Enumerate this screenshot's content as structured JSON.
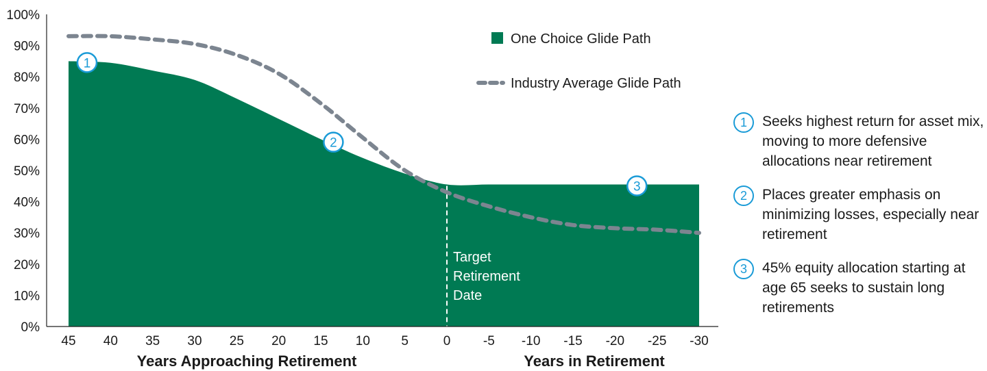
{
  "chart_data": {
    "type": "area",
    "y_ticks": [
      "100%",
      "90%",
      "80%",
      "70%",
      "60%",
      "50%",
      "40%",
      "30%",
      "20%",
      "10%",
      "0%"
    ],
    "ylim": [
      0,
      100
    ],
    "x_ticks": [
      "45",
      "40",
      "35",
      "30",
      "25",
      "20",
      "15",
      "10",
      "5",
      "0",
      "-5",
      "-10",
      "-15",
      "-20",
      "-25",
      "-30"
    ],
    "xlim": [
      45,
      -30
    ],
    "xlabel_left": "Years Approaching Retirement",
    "xlabel_right": "Years in Retirement",
    "grid": false,
    "legend_position": "top-right",
    "series": [
      {
        "name": "One Choice Glide Path",
        "style": "area",
        "color": "#007a53",
        "x": [
          45,
          40,
          35,
          30,
          25,
          20,
          15,
          10,
          5,
          0,
          -5,
          -10,
          -15,
          -20,
          -25,
          -30
        ],
        "values": [
          85,
          84.5,
          82,
          79,
          73,
          66.5,
          60,
          54,
          49,
          45.5,
          45.5,
          45.5,
          45.5,
          45.5,
          45.5,
          45.5
        ]
      },
      {
        "name": "Industry Average Glide Path",
        "style": "dashed-line",
        "color": "#7c8590",
        "x": [
          45,
          40,
          35,
          30,
          25,
          20,
          15,
          10,
          5,
          0,
          -5,
          -10,
          -15,
          -20,
          -25,
          -30
        ],
        "values": [
          93,
          93,
          92,
          90.5,
          87,
          81,
          71.5,
          60.5,
          50,
          43,
          38.5,
          35,
          32.5,
          31.5,
          31,
          30
        ]
      }
    ],
    "target_line": {
      "x": 0,
      "label_lines": [
        "Target",
        "Retirement",
        "Date"
      ]
    },
    "markers": [
      {
        "label": "1",
        "x": 42.8,
        "y": 85
      },
      {
        "label": "2",
        "x": 13.5,
        "y": 59.5
      },
      {
        "label": "3",
        "x": -22.6,
        "y": 45.5
      }
    ],
    "marker_color": "#1a9bd7"
  },
  "notes": [
    {
      "number": "1",
      "text": "Seeks highest return for asset mix, moving to more defensive allocations near retirement"
    },
    {
      "number": "2",
      "text": "Places greater emphasis on minimizing losses, especially near retirement"
    },
    {
      "number": "3",
      "text": "45% equity allocation starting at age 65 seeks to sustain long retirements"
    }
  ]
}
